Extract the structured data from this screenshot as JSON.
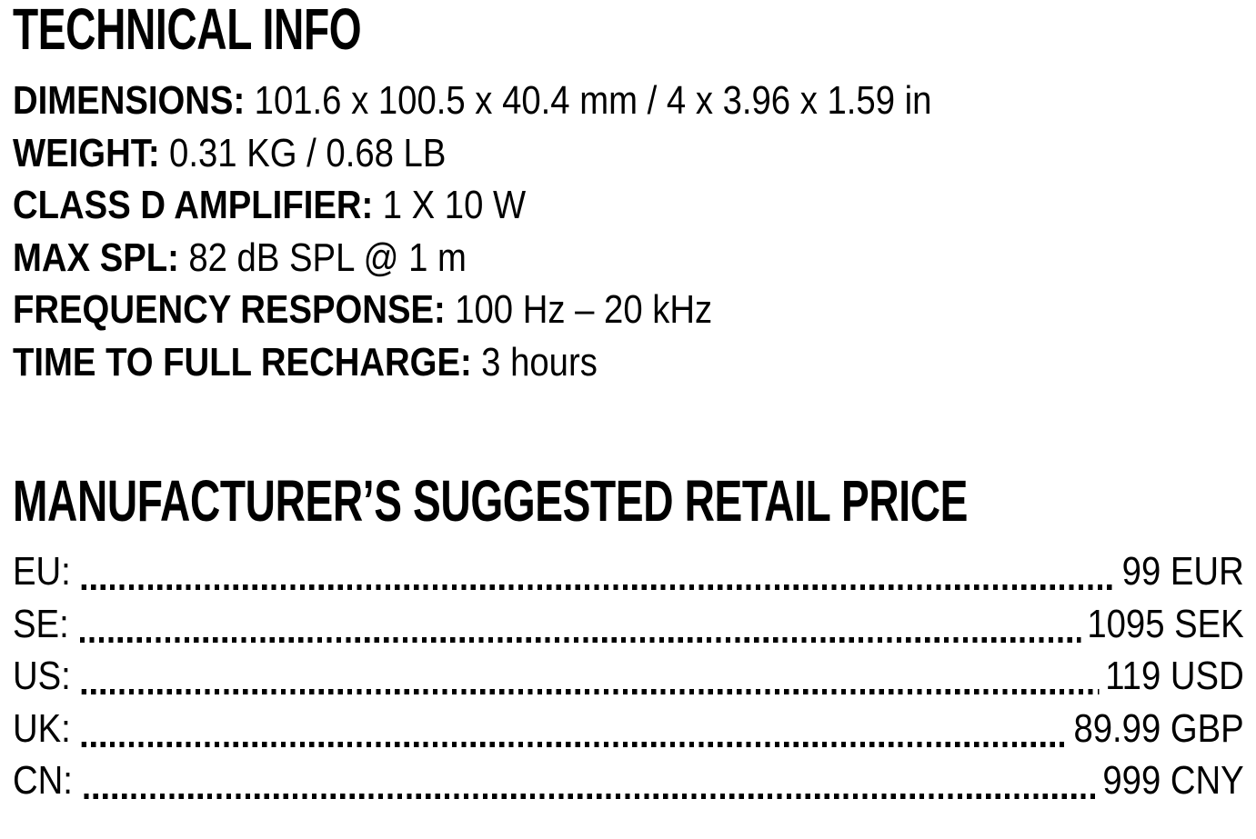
{
  "colors": {
    "background": "#ffffff",
    "text": "#000000"
  },
  "technical_info": {
    "title": "TECHNICAL INFO",
    "specs": [
      {
        "label": "DIMENSIONS:",
        "value": "101.6 x 100.5 x 40.4 mm / 4 x 3.96 x 1.59 in"
      },
      {
        "label": "WEIGHT:",
        "value": "0.31 KG / 0.68 LB"
      },
      {
        "label": "CLASS D AMPLIFIER:",
        "value": "1 X 10 W"
      },
      {
        "label": "MAX SPL:",
        "value": "82 dB SPL @ 1 m"
      },
      {
        "label": "FREQUENCY RESPONSE:",
        "value": "100 Hz – 20 kHz"
      },
      {
        "label": "TIME TO FULL RECHARGE:",
        "value": "3 hours"
      }
    ]
  },
  "msrp": {
    "title": "MANUFACTURER’S SUGGESTED RETAIL PRICE",
    "prices": [
      {
        "region": "EU:",
        "price": "99 EUR"
      },
      {
        "region": "SE:",
        "price": "1095 SEK"
      },
      {
        "region": "US:",
        "price": "119 USD"
      },
      {
        "region": "UK:",
        "price": "89.99 GBP"
      },
      {
        "region": "CN:",
        "price": "999 CNY"
      }
    ]
  }
}
